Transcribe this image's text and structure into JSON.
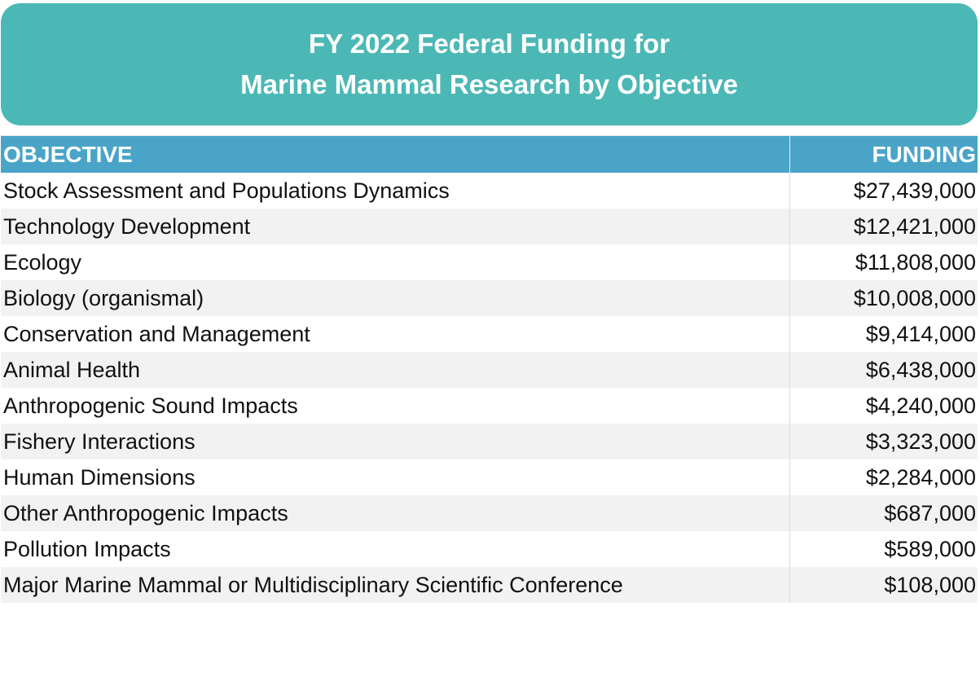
{
  "title": {
    "line1": "FY 2022 Federal Funding for",
    "line2": "Marine Mammal Research by Objective"
  },
  "colors": {
    "title_background": "#4bb8b6",
    "header_background": "#4aa4c8",
    "alt_row_background": "#f2f2f2"
  },
  "chart_data": {
    "type": "table",
    "title": "FY 2022 Federal Funding for Marine Mammal Research by Objective",
    "columns": [
      "OBJECTIVE",
      "FUNDING"
    ],
    "rows": [
      {
        "objective": "Stock Assessment and Populations Dynamics",
        "funding": "$27,439,000",
        "value": 27439000
      },
      {
        "objective": "Technology Development",
        "funding": "$12,421,000",
        "value": 12421000
      },
      {
        "objective": "Ecology",
        "funding": "$11,808,000",
        "value": 11808000
      },
      {
        "objective": "Biology (organismal)",
        "funding": "$10,008,000",
        "value": 10008000
      },
      {
        "objective": "Conservation and Management",
        "funding": "$9,414,000",
        "value": 9414000
      },
      {
        "objective": "Animal Health",
        "funding": "$6,438,000",
        "value": 6438000
      },
      {
        "objective": "Anthropogenic Sound Impacts",
        "funding": "$4,240,000",
        "value": 4240000
      },
      {
        "objective": "Fishery Interactions",
        "funding": "$3,323,000",
        "value": 3323000
      },
      {
        "objective": "Human Dimensions",
        "funding": "$2,284,000",
        "value": 2284000
      },
      {
        "objective": "Other Anthropogenic Impacts",
        "funding": "$687,000",
        "value": 687000
      },
      {
        "objective": "Pollution Impacts",
        "funding": "$589,000",
        "value": 589000
      },
      {
        "objective": "Major Marine Mammal or Multidisciplinary Scientific Conference",
        "funding": "$108,000",
        "value": 108000
      }
    ]
  }
}
